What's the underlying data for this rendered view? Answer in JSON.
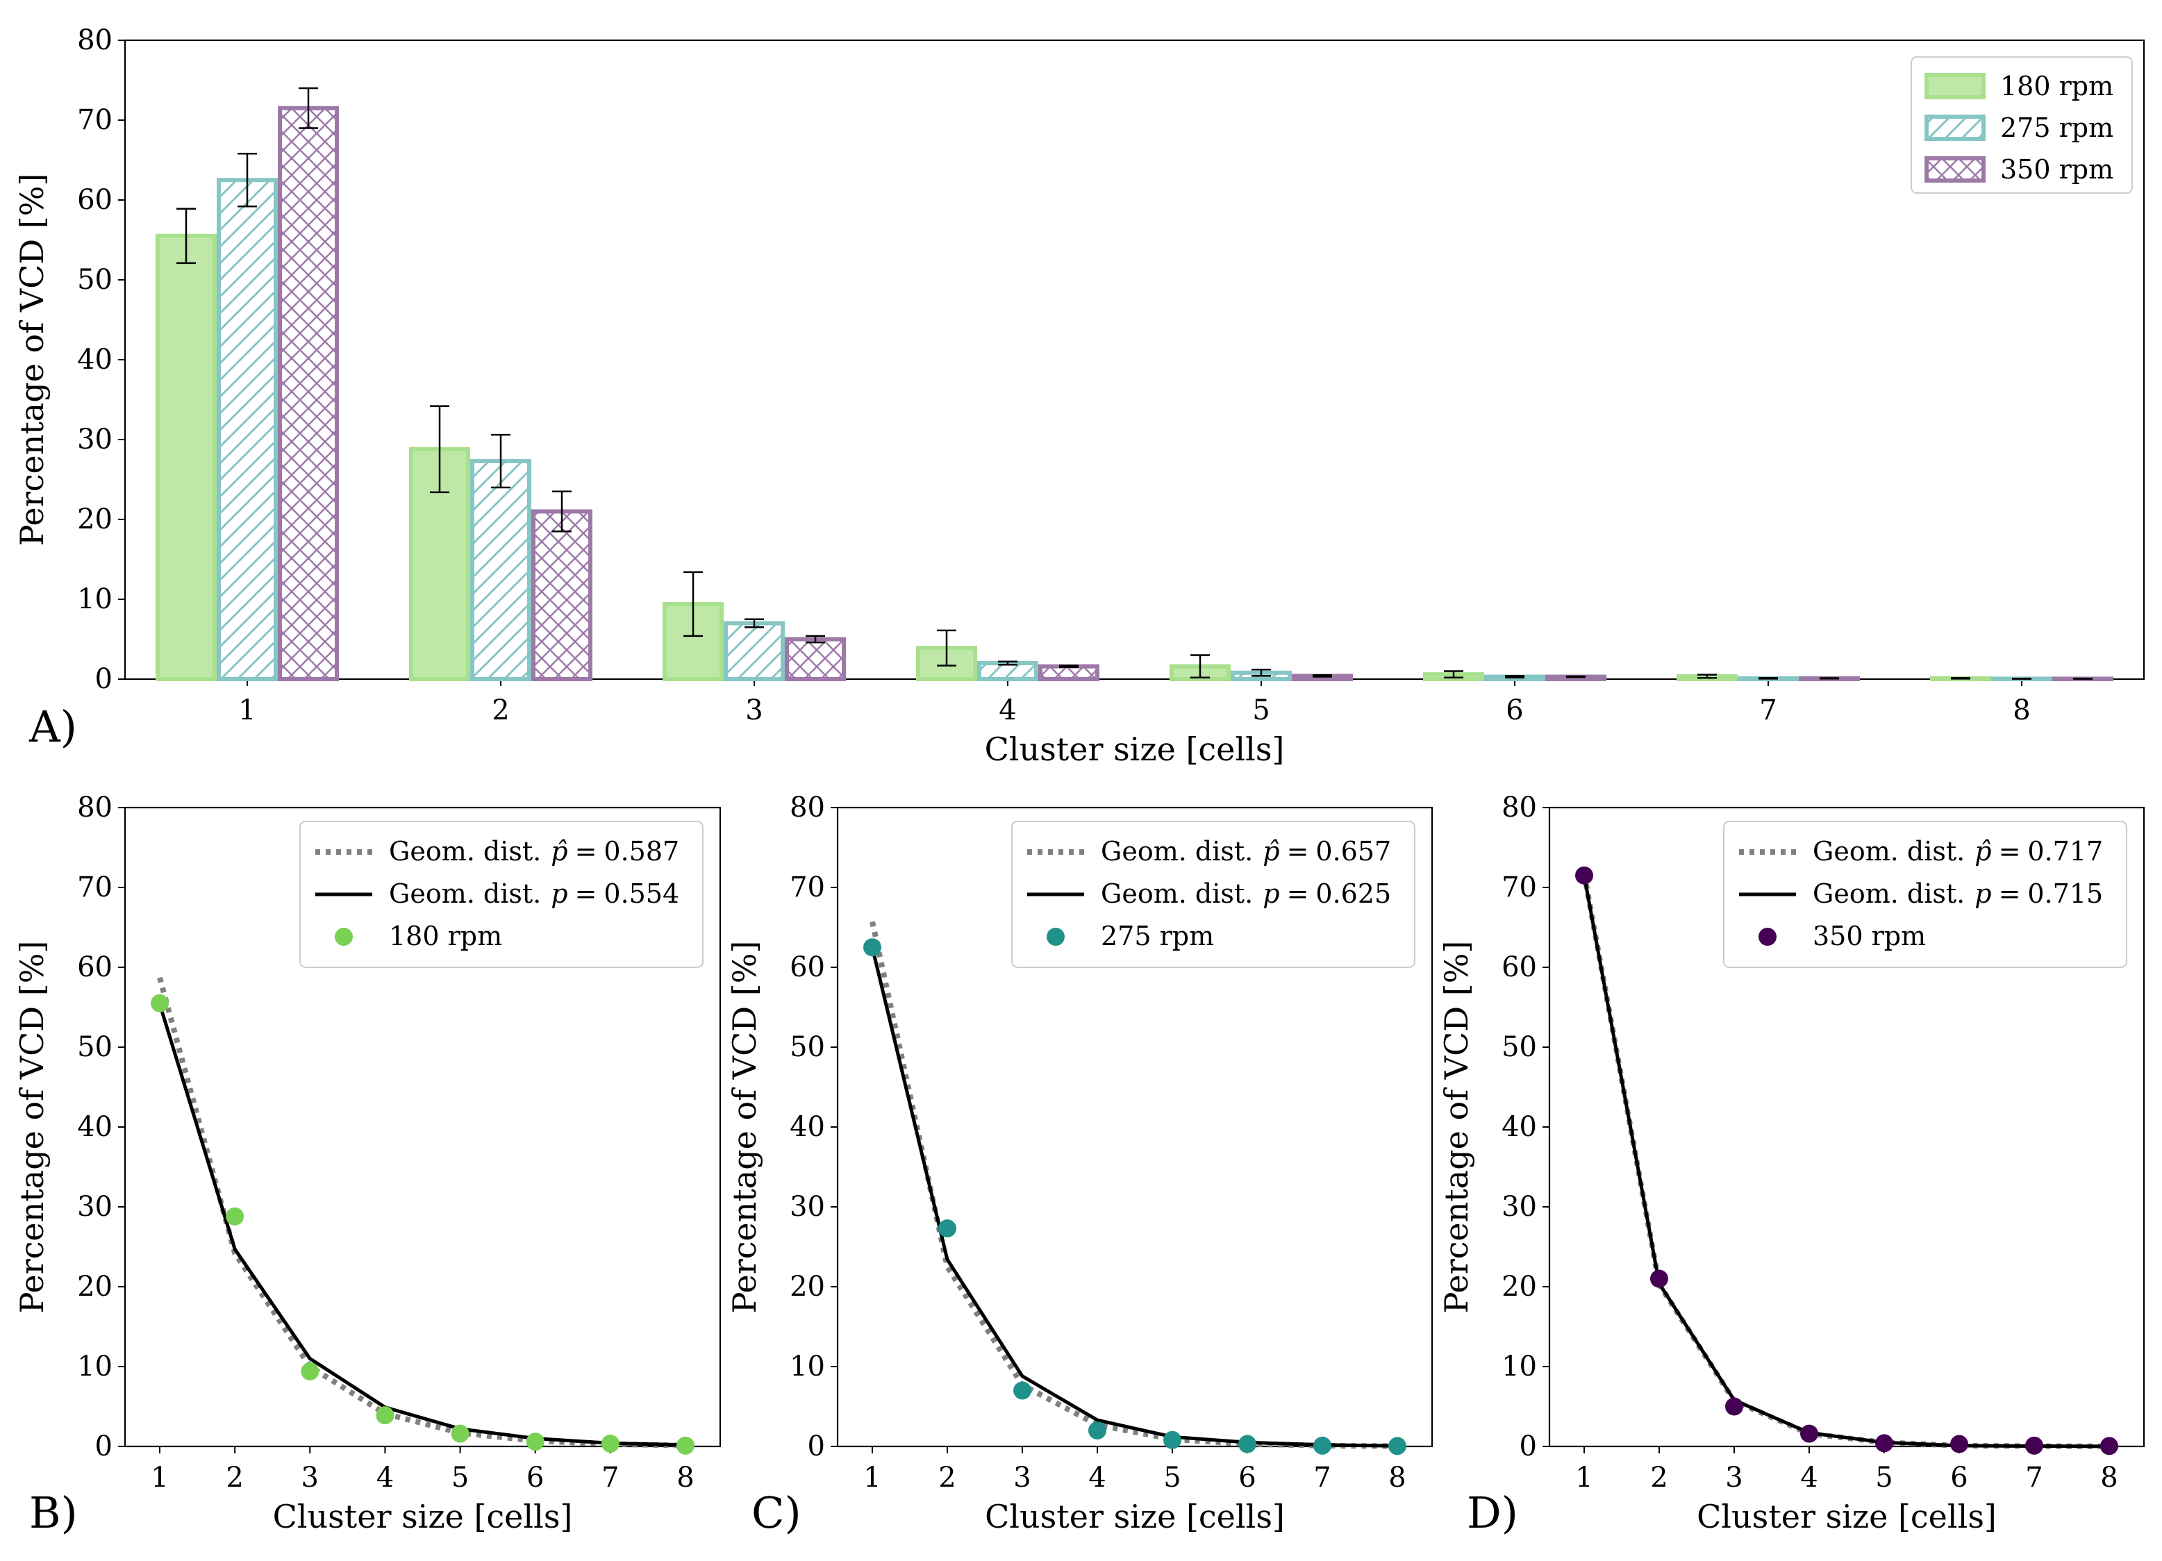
{
  "figure": {
    "panel_labels": [
      "A)",
      "B)",
      "C)",
      "D)"
    ]
  },
  "chart_data": [
    {
      "panel": "A)",
      "type": "bar",
      "title": "",
      "xlabel": "Cluster size [cells]",
      "ylabel": "Percentage of VCD [%]",
      "ylim": [
        0,
        80
      ],
      "yticks": [
        0,
        10,
        20,
        30,
        40,
        50,
        60,
        70,
        80
      ],
      "categories": [
        "1",
        "2",
        "3",
        "4",
        "5",
        "6",
        "7",
        "8"
      ],
      "legend_position": "top-right",
      "series": [
        {
          "name": "180 rpm",
          "hatch": "none",
          "edge_color": "#a8e08e",
          "fill_color": "#bfe8a8",
          "values": [
            55.5,
            28.8,
            9.4,
            3.9,
            1.6,
            0.6,
            0.35,
            0.1
          ],
          "errors": [
            3.4,
            5.4,
            4.0,
            2.2,
            1.4,
            0.4,
            0.2,
            0.05
          ]
        },
        {
          "name": "275 rpm",
          "hatch": "diagonal",
          "edge_color": "#86c6c4",
          "fill_color": "#ffffff",
          "values": [
            62.5,
            27.3,
            7.0,
            2.0,
            0.8,
            0.3,
            0.1,
            0.05
          ],
          "errors": [
            3.3,
            3.3,
            0.5,
            0.2,
            0.4,
            0.1,
            0.05,
            0.02
          ]
        },
        {
          "name": "350 rpm",
          "hatch": "crosshatch",
          "edge_color": "#9d79a8",
          "fill_color": "#ffffff",
          "values": [
            71.5,
            21.0,
            5.0,
            1.6,
            0.4,
            0.3,
            0.1,
            0.05
          ],
          "errors": [
            2.5,
            2.5,
            0.4,
            0.1,
            0.1,
            0.05,
            0.03,
            0.02
          ]
        }
      ]
    },
    {
      "panel": "B)",
      "type": "line",
      "xlabel": "Cluster size [cells]",
      "ylabel": "Percentage of VCD [%]",
      "ylim": [
        0,
        80
      ],
      "yticks": [
        0,
        10,
        20,
        30,
        40,
        50,
        60,
        70,
        80
      ],
      "x": [
        1,
        2,
        3,
        4,
        5,
        6,
        7,
        8
      ],
      "legend_position": "top-right",
      "dotted": {
        "label_prefix": "Geom. dist.",
        "param_symbol": "p̂",
        "param_value": "0.587",
        "values": [
          58.7,
          24.2,
          10.0,
          4.1,
          1.7,
          0.7,
          0.3,
          0.1
        ],
        "color": "#808080"
      },
      "solid": {
        "label_prefix": "Geom. dist.",
        "param_symbol": "p",
        "param_value": "0.554",
        "values": [
          55.4,
          24.7,
          11.0,
          4.9,
          2.2,
          1.0,
          0.4,
          0.2
        ],
        "color": "#000000"
      },
      "points": {
        "label": "180 rpm",
        "values": [
          55.5,
          28.8,
          9.4,
          3.9,
          1.6,
          0.6,
          0.35,
          0.1
        ],
        "color": "#78d152"
      }
    },
    {
      "panel": "C)",
      "type": "line",
      "xlabel": "Cluster size [cells]",
      "ylabel": "Percentage of VCD [%]",
      "ylim": [
        0,
        80
      ],
      "yticks": [
        0,
        10,
        20,
        30,
        40,
        50,
        60,
        70,
        80
      ],
      "x": [
        1,
        2,
        3,
        4,
        5,
        6,
        7,
        8
      ],
      "legend_position": "top-right",
      "dotted": {
        "label_prefix": "Geom. dist.",
        "param_symbol": "p̂",
        "param_value": "0.657",
        "values": [
          65.7,
          22.5,
          7.7,
          2.7,
          0.9,
          0.3,
          0.1,
          0.04
        ],
        "color": "#808080"
      },
      "solid": {
        "label_prefix": "Geom. dist.",
        "param_symbol": "p",
        "param_value": "0.625",
        "values": [
          62.5,
          23.4,
          8.8,
          3.3,
          1.2,
          0.5,
          0.2,
          0.07
        ],
        "color": "#000000"
      },
      "points": {
        "label": "275 rpm",
        "values": [
          62.5,
          27.3,
          7.0,
          2.0,
          0.8,
          0.3,
          0.1,
          0.05
        ],
        "color": "#21918c"
      }
    },
    {
      "panel": "D)",
      "type": "line",
      "xlabel": "Cluster size [cells]",
      "ylabel": "Percentage of VCD [%]",
      "ylim": [
        0,
        80
      ],
      "yticks": [
        0,
        10,
        20,
        30,
        40,
        50,
        60,
        70,
        80
      ],
      "x": [
        1,
        2,
        3,
        4,
        5,
        6,
        7,
        8
      ],
      "legend_position": "top-right",
      "dotted": {
        "label_prefix": "Geom. dist.",
        "param_symbol": "p̂",
        "param_value": "0.717",
        "values": [
          71.7,
          20.3,
          5.7,
          1.6,
          0.5,
          0.1,
          0.04,
          0.01
        ],
        "color": "#808080"
      },
      "solid": {
        "label_prefix": "Geom. dist.",
        "param_symbol": "p",
        "param_value": "0.715",
        "values": [
          71.5,
          20.4,
          5.8,
          1.7,
          0.5,
          0.1,
          0.04,
          0.01
        ],
        "color": "#000000"
      },
      "points": {
        "label": "350 rpm",
        "values": [
          71.5,
          21.0,
          5.0,
          1.6,
          0.4,
          0.3,
          0.1,
          0.05
        ],
        "color": "#440154"
      }
    }
  ]
}
